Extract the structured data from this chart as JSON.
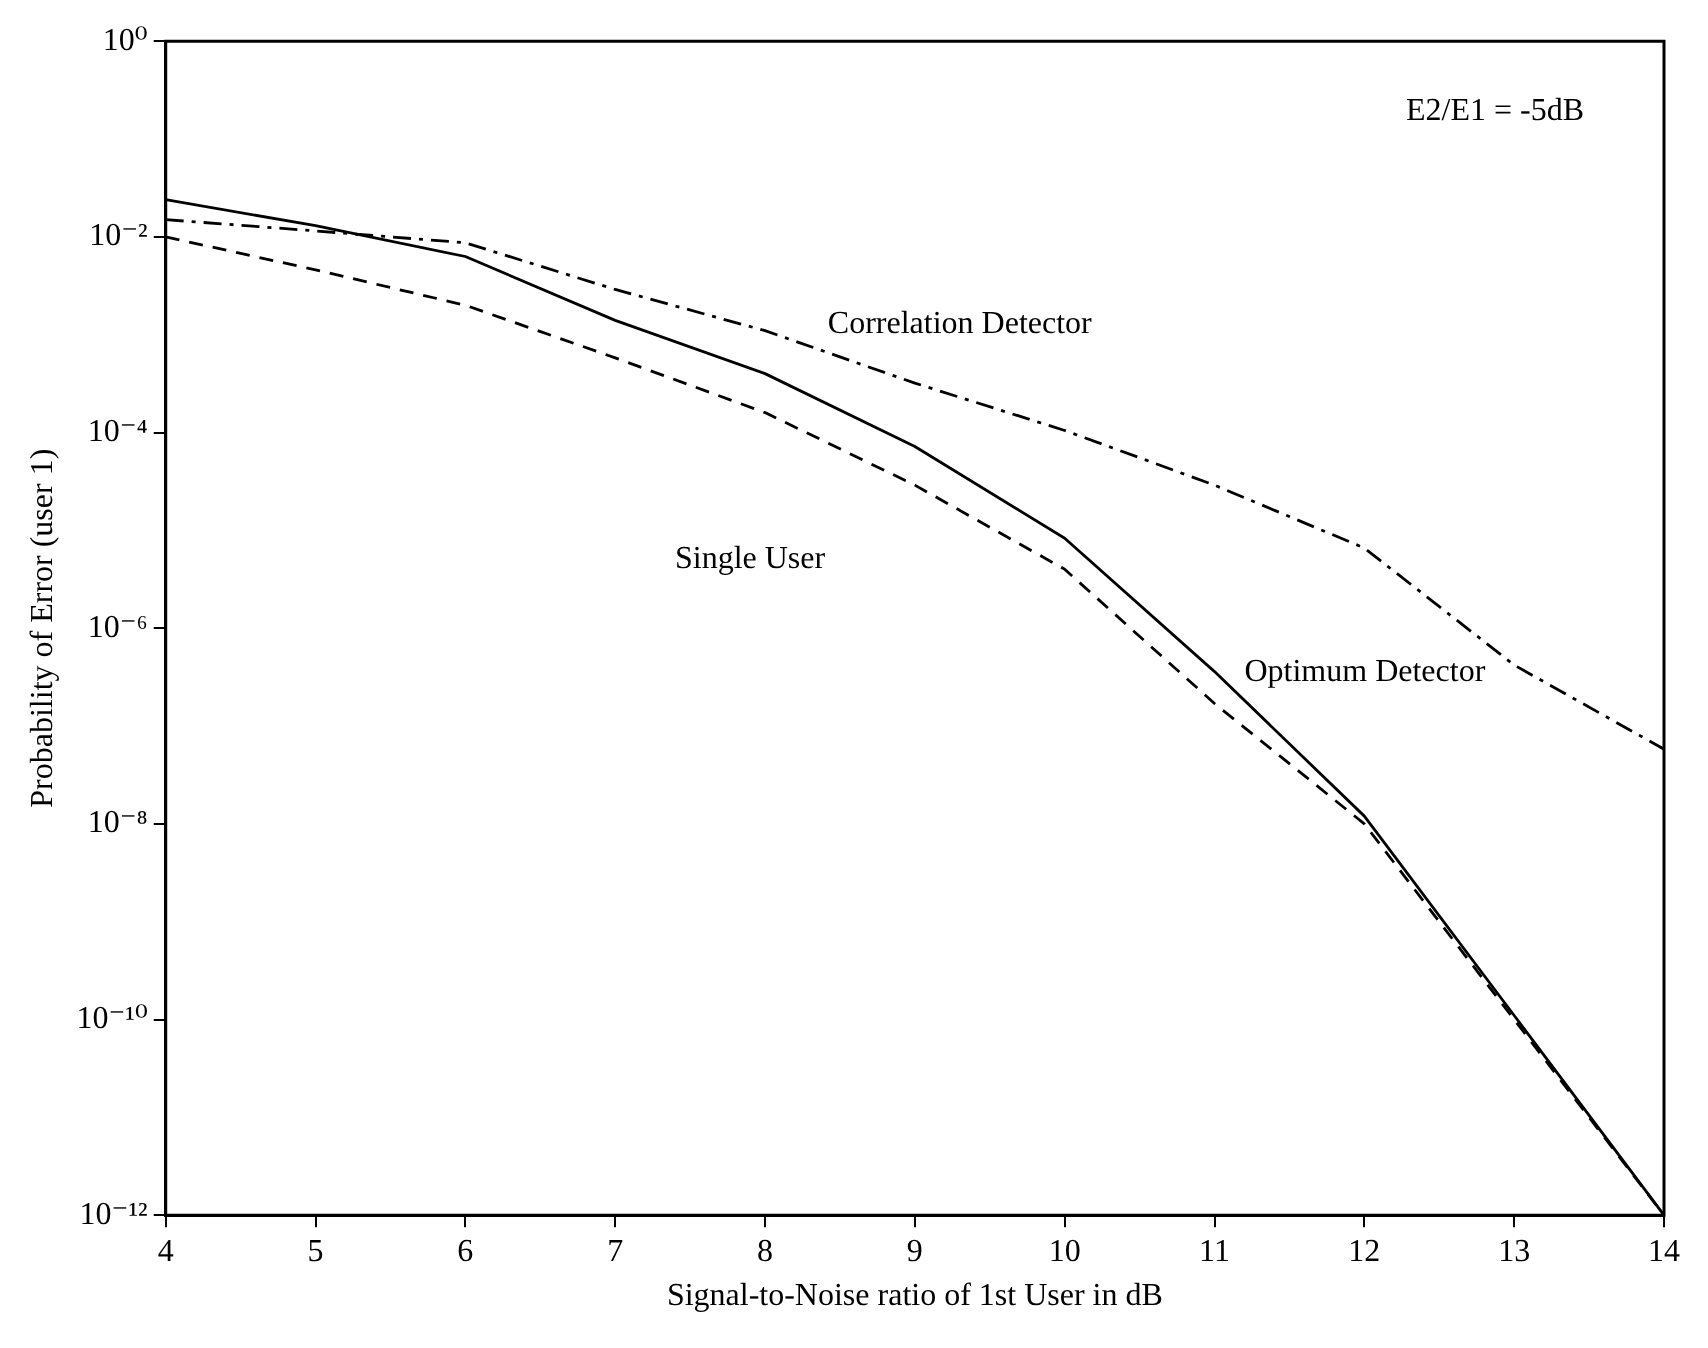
{
  "chart_data": {
    "type": "line",
    "xlabel": "Signal-to-Noise ratio of 1st User in dB",
    "ylabel": "Probability of Error (user 1)",
    "x": [
      4,
      5,
      6,
      7,
      8,
      9,
      10,
      11,
      12,
      13,
      14
    ],
    "series": [
      {
        "name": "Optimum Detector",
        "color": "#000000",
        "line_style": "solid",
        "values": [
          0.024,
          0.013,
          0.0063,
          0.0014,
          0.0004,
          7.2e-05,
          8.3e-06,
          3.6e-07,
          1.2e-08,
          1.1e-10,
          1e-12
        ]
      },
      {
        "name": "Single User",
        "color": "#000000",
        "line_style": "dashed",
        "values": [
          0.01,
          0.0046,
          0.002,
          0.00058,
          0.00016,
          2.9e-05,
          4e-06,
          1.7e-07,
          1e-08,
          1e-10,
          1e-12
        ]
      },
      {
        "name": "Correlation Detector",
        "color": "#000000",
        "line_style": "dashdot",
        "values": [
          0.015,
          0.0115,
          0.0087,
          0.0029,
          0.0011,
          0.00032,
          0.000105,
          2.9e-05,
          6.6e-06,
          4.2e-07,
          5.8e-08
        ]
      }
    ],
    "annotations": [
      "E2/E1 = -5dB"
    ],
    "log": "y",
    "xlim": [
      4,
      14
    ],
    "ylim": [
      1e-12,
      1
    ],
    "xticks": [
      4,
      5,
      6,
      7,
      8,
      9,
      10,
      11,
      12,
      13,
      14
    ],
    "yticks": [
      {
        "value": 1e-12,
        "label": "10⁻¹²"
      },
      {
        "value": 1e-10,
        "label": "10⁻¹⁰"
      },
      {
        "value": 1e-08,
        "label": "10⁻⁸"
      },
      {
        "value": 1e-06,
        "label": "10⁻⁶"
      },
      {
        "value": 0.0001,
        "label": "10⁻⁴"
      },
      {
        "value": 0.01,
        "label": "10⁻²"
      },
      {
        "value": 1,
        "label": "10⁰"
      }
    ],
    "grid": false,
    "legend": false,
    "marker": "none"
  }
}
